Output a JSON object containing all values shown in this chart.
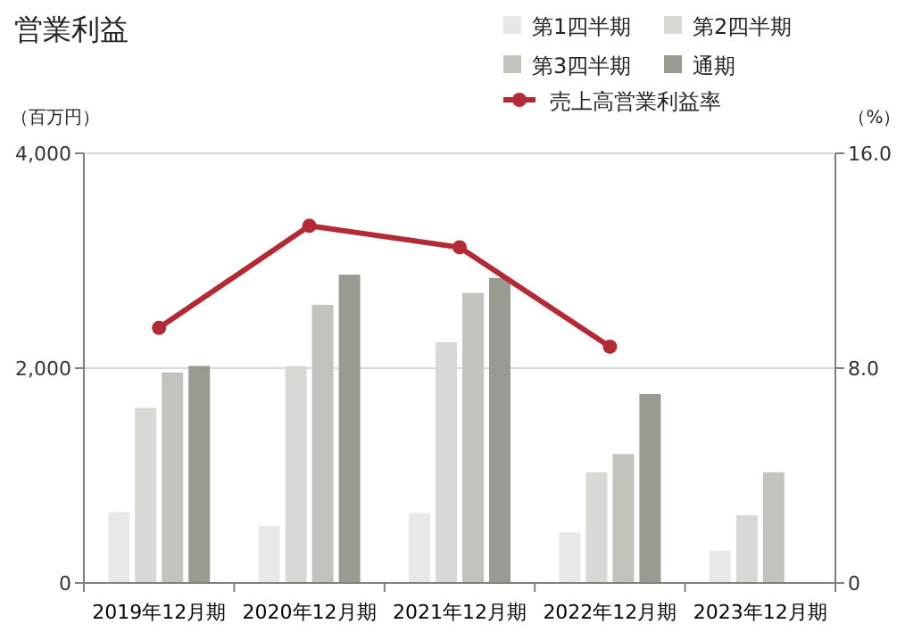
{
  "chart_data": {
    "type": "bar",
    "title": "営業利益",
    "ylabel": "（百万円）",
    "y2label": "（%）",
    "categories": [
      "2019年12月期",
      "2020年12月期",
      "2021年12月期",
      "2022年12月期",
      "2023年12月期"
    ],
    "series": [
      {
        "name": "第1四半期",
        "color": "#e8e8e6",
        "values": [
          660,
          530,
          650,
          470,
          300
        ]
      },
      {
        "name": "第2四半期",
        "color": "#d8d8d4",
        "values": [
          1630,
          2020,
          2240,
          1030,
          630
        ]
      },
      {
        "name": "第3四半期",
        "color": "#c3c3bd",
        "values": [
          1960,
          2590,
          2700,
          1200,
          1030
        ]
      },
      {
        "name": "通期",
        "color": "#9a9a90",
        "values": [
          2020,
          2870,
          2840,
          1760,
          null
        ]
      },
      {
        "name": "売上高営業利益率",
        "type": "line",
        "axis": "y2",
        "color": "#b22a36",
        "values": [
          9.5,
          13.3,
          12.5,
          8.8,
          null
        ]
      }
    ],
    "ylim": [
      0,
      4000
    ],
    "yticks": [
      0,
      {
        "value": 2000,
        "label": "2,000"
      },
      {
        "value": 4000,
        "label": "4,000"
      }
    ],
    "y2lim": [
      0,
      16
    ],
    "y2ticks": [
      0,
      {
        "value": 8,
        "label": "8.0"
      },
      {
        "value": 16,
        "label": "16.0"
      }
    ],
    "grid": "y",
    "legend": "top right",
    "marker": "circle"
  }
}
